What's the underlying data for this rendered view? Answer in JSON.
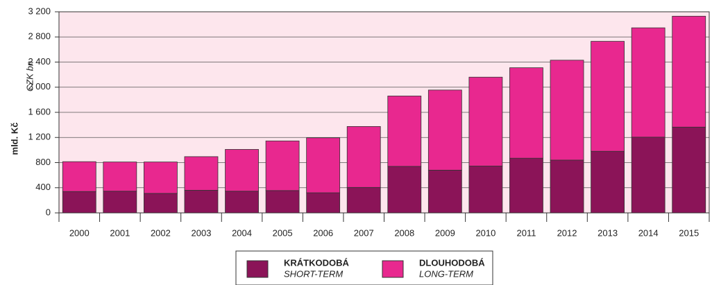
{
  "chart_data": {
    "type": "stacked_bar",
    "y_label": "mld. Kč",
    "y_label_alt": "CZK bn",
    "categories": [
      "2000",
      "2001",
      "2002",
      "2003",
      "2004",
      "2005",
      "2006",
      "2007",
      "2008",
      "2009",
      "2010",
      "2011",
      "2012",
      "2013",
      "2014",
      "2015"
    ],
    "series": [
      {
        "name": "KRÁTKODOBÁ",
        "name_alt": "SHORT-TERM",
        "color": "#8b1458",
        "values": [
          340,
          345,
          310,
          360,
          345,
          355,
          320,
          405,
          740,
          680,
          745,
          870,
          840,
          980,
          1205,
          1365
        ]
      },
      {
        "name": "DLOUHODOBÁ",
        "name_alt": "LONG-TERM",
        "color": "#e8288f",
        "values": [
          475,
          465,
          500,
          535,
          665,
          790,
          875,
          970,
          1120,
          1275,
          1415,
          1440,
          1590,
          1750,
          1740,
          1765
        ]
      }
    ],
    "ylim": [
      0,
      3200
    ],
    "yticks": [
      0,
      400,
      800,
      {
        "value": 1200,
        "label": "1 200"
      },
      {
        "value": 1600,
        "label": "1 600"
      },
      {
        "value": 2000,
        "label": "2 000"
      },
      {
        "value": 2400,
        "label": "2 400"
      },
      {
        "value": 2800,
        "label": "2 800"
      },
      {
        "value": 3200,
        "label": "3 200"
      }
    ],
    "grid": true
  }
}
